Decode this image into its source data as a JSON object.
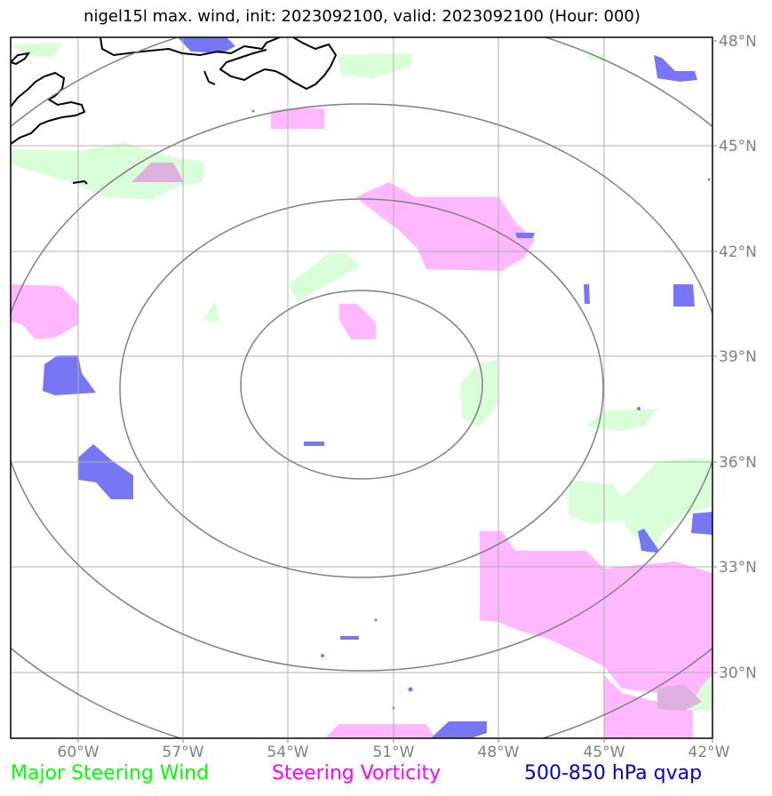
{
  "title": "nigel15l max. wind, init: 2023092100, valid: 2023092100 (Hour: 000)",
  "map": {
    "lon_ticks": [
      "60°W",
      "57°W",
      "54°W",
      "51°W",
      "48°W",
      "45°W",
      "42°W"
    ],
    "lat_ticks": [
      "48°N",
      "45°N",
      "42°N",
      "39°N",
      "36°N",
      "33°N",
      "30°N"
    ],
    "range_rings": 4,
    "gridlines": true
  },
  "colors": {
    "steering_wind": "#00ff00",
    "steering_vorticity": "#ff00ff",
    "qvap": "#0000cc",
    "wind_fill": "#d9ffd9",
    "vorticity_fill": "#ffb8ff",
    "qvap_fill": "#7777f5",
    "grid": "#b0b0b0",
    "ring": "#808080",
    "tick_text": "#808080"
  },
  "legend": [
    {
      "label": "Major Steering Wind",
      "color": "#00ff00"
    },
    {
      "label": "Steering Vorticity",
      "color": "#ff00ff"
    },
    {
      "label": "500-850 hPa qvap",
      "color": "#0000cc"
    }
  ]
}
